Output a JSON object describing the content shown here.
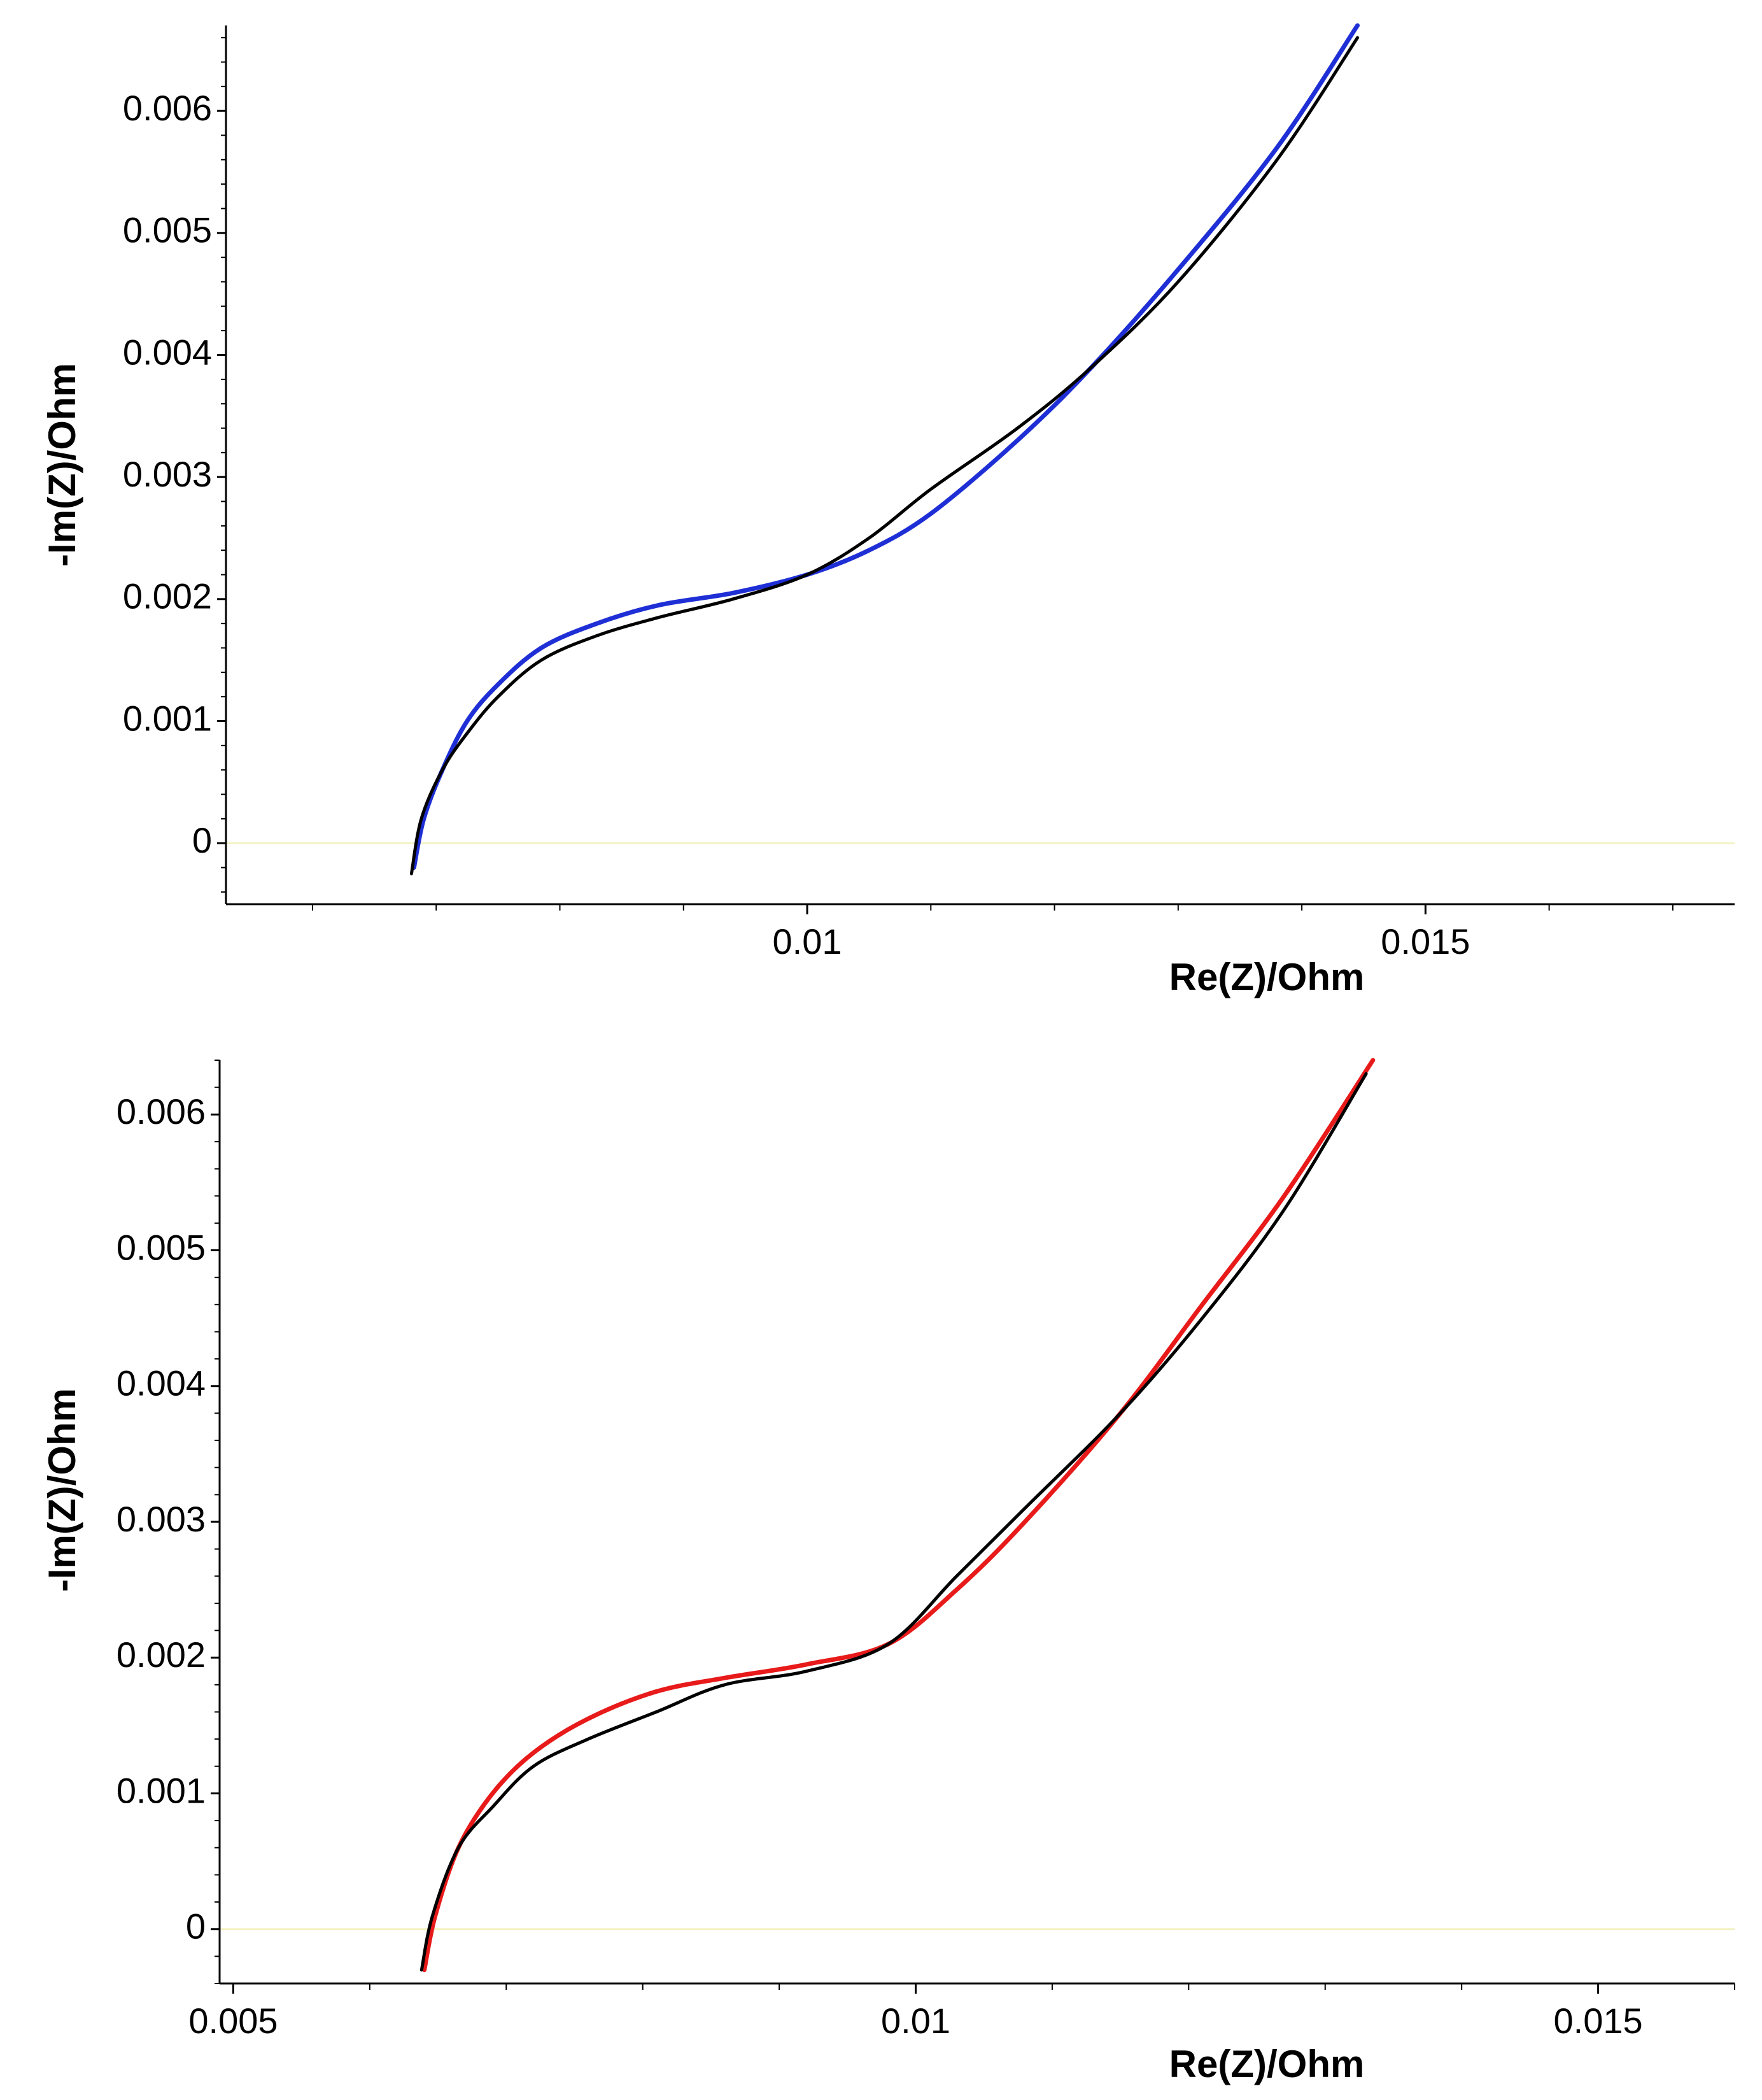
{
  "colors": {
    "background": "#ffffff",
    "axis": "#000000",
    "zero_line": "#f2f2c4",
    "measured": "#000000",
    "fit_top": "#1f2fd6",
    "fit_bottom": "#e81a1a"
  },
  "chart_data": [
    {
      "type": "line",
      "title": "",
      "xlabel": "Re(Z)/Ohm",
      "ylabel": "-Im(Z)/Ohm",
      "xlim": [
        0.0053,
        0.0175
      ],
      "ylim": [
        -0.0005,
        0.0067
      ],
      "grid": false,
      "x_ticks": [
        {
          "value": 0.01,
          "label": "0.01"
        },
        {
          "value": 0.015,
          "label": "0.015"
        }
      ],
      "y_ticks": [
        {
          "value": 0,
          "label": "0"
        },
        {
          "value": 0.001,
          "label": "0.001"
        },
        {
          "value": 0.002,
          "label": "0.002"
        },
        {
          "value": 0.003,
          "label": "0.003"
        },
        {
          "value": 0.004,
          "label": "0.004"
        },
        {
          "value": 0.005,
          "label": "0.005"
        },
        {
          "value": 0.006,
          "label": "0.006"
        }
      ],
      "zero_line": true,
      "series": [
        {
          "color": "#1f2fd6",
          "x": [
            0.00682,
            0.0069,
            0.00705,
            0.00725,
            0.0075,
            0.00785,
            0.0083,
            0.0088,
            0.0094,
            0.01,
            0.0105,
            0.011,
            0.0117,
            0.0123,
            0.013,
            0.0138,
            0.01445
          ],
          "y": [
            -0.0002,
            0.0002,
            0.0006,
            0.001,
            0.0013,
            0.0016,
            0.0018,
            0.00195,
            0.00205,
            0.0022,
            0.0024,
            0.0027,
            0.0033,
            0.0039,
            0.0047,
            0.0057,
            0.0067
          ]
        },
        {
          "color": "#000000",
          "x": [
            0.0068,
            0.00688,
            0.00705,
            0.00725,
            0.0075,
            0.00785,
            0.0083,
            0.0088,
            0.0094,
            0.01,
            0.0105,
            0.011,
            0.0117,
            0.0123,
            0.013,
            0.0138,
            0.01445
          ],
          "y": [
            -0.00025,
            0.0002,
            0.0006,
            0.0009,
            0.0012,
            0.0015,
            0.0017,
            0.00185,
            0.002,
            0.0022,
            0.0025,
            0.0029,
            0.0034,
            0.0039,
            0.0046,
            0.0056,
            0.0066
          ]
        }
      ]
    },
    {
      "type": "line",
      "title": "",
      "xlabel": "Re(Z)/Ohm",
      "ylabel": "-Im(Z)/Ohm",
      "xlim": [
        0.0049,
        0.016
      ],
      "ylim": [
        -0.0004,
        0.0064
      ],
      "grid": false,
      "x_ticks": [
        {
          "value": 0.005,
          "label": "0.005"
        },
        {
          "value": 0.01,
          "label": "0.01"
        },
        {
          "value": 0.015,
          "label": "0.015"
        }
      ],
      "y_ticks": [
        {
          "value": 0,
          "label": "0"
        },
        {
          "value": 0.001,
          "label": "0.001"
        },
        {
          "value": 0.002,
          "label": "0.002"
        },
        {
          "value": 0.003,
          "label": "0.003"
        },
        {
          "value": 0.004,
          "label": "0.004"
        },
        {
          "value": 0.005,
          "label": "0.005"
        },
        {
          "value": 0.006,
          "label": "0.006"
        }
      ],
      "zero_line": true,
      "series": [
        {
          "color": "#e81a1a",
          "x": [
            0.0064,
            0.00648,
            0.00665,
            0.0069,
            0.0072,
            0.0076,
            0.0081,
            0.0086,
            0.0092,
            0.0098,
            0.0103,
            0.0108,
            0.0115,
            0.0121,
            0.0127,
            0.01335
          ],
          "y": [
            -0.0003,
            0.0001,
            0.0006,
            0.001,
            0.0013,
            0.00155,
            0.00175,
            0.00185,
            0.00195,
            0.0021,
            0.0025,
            0.003,
            0.0038,
            0.0046,
            0.0054,
            0.0064
          ]
        },
        {
          "color": "#000000",
          "x": [
            0.00638,
            0.00646,
            0.00665,
            0.0069,
            0.0072,
            0.0076,
            0.0081,
            0.0086,
            0.0092,
            0.0098,
            0.0103,
            0.0108,
            0.0115,
            0.0121,
            0.0127,
            0.0133
          ],
          "y": [
            -0.0003,
            0.0001,
            0.0006,
            0.0009,
            0.0012,
            0.0014,
            0.0016,
            0.0018,
            0.0019,
            0.0021,
            0.0026,
            0.0031,
            0.0038,
            0.0045,
            0.0053,
            0.0063
          ]
        }
      ]
    }
  ]
}
